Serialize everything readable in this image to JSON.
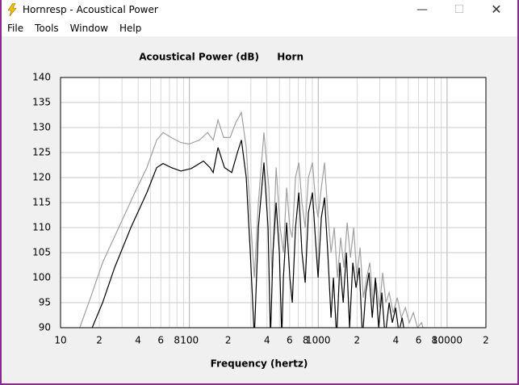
{
  "window": {
    "title": "Hornresp - Acoustical Power",
    "menu": [
      "File",
      "Tools",
      "Window",
      "Help"
    ]
  },
  "chart_data": {
    "type": "line",
    "title": "Acoustical Power (dB)",
    "label": "Horn",
    "x_label": "Frequency (hertz)",
    "xscale": "log",
    "grid": true,
    "xlim": [
      10,
      20000
    ],
    "xticks": [
      10,
      {
        "value": 20,
        "label": "2"
      },
      {
        "value": 40,
        "label": "4"
      },
      {
        "value": 60,
        "label": "6"
      },
      {
        "value": 80,
        "label": "8"
      },
      100,
      {
        "value": 200,
        "label": "2"
      },
      {
        "value": 400,
        "label": "4"
      },
      {
        "value": 600,
        "label": "6"
      },
      {
        "value": 800,
        "label": "8"
      },
      1000,
      {
        "value": 2000,
        "label": "2"
      },
      {
        "value": 4000,
        "label": "4"
      },
      {
        "value": 6000,
        "label": "6"
      },
      {
        "value": 8000,
        "label": "8"
      },
      10000,
      {
        "value": 20000,
        "label": "2"
      }
    ],
    "xminor": [
      30,
      50,
      70,
      90,
      300,
      500,
      700,
      900,
      3000,
      5000,
      7000,
      9000
    ],
    "ylim": [
      90,
      140
    ],
    "yticks": [
      90,
      95,
      100,
      105,
      110,
      115,
      120,
      125,
      130,
      135,
      140
    ],
    "series": [
      {
        "color": "#a0a0a0",
        "x": [
          14.1,
          17.1,
          21.2,
          28.3,
          37.7,
          46.8,
          55.7,
          62.5,
          72.2,
          85.8,
          99.2,
          119.6,
          138.1,
          152.9,
          166.7,
          184.4,
          207,
          228.9,
          253.3,
          276.2,
          301.2,
          319,
          343,
          379,
          414,
          438,
          471,
          506,
          536,
          568,
          602,
          629,
          666,
          706,
          747,
          792,
          839,
          902,
          955,
          997,
          1057,
          1119,
          1186,
          1256,
          1331,
          1410,
          1494,
          1583,
          1677,
          1777,
          1883,
          1994,
          2112,
          2238,
          2371,
          2512,
          2660,
          2818,
          2986,
          3163,
          3351,
          3550,
          3815,
          4102,
          4410,
          4739,
          5092,
          5473,
          5885,
          6323,
          6699
        ],
        "values": [
          90,
          96,
          103,
          110,
          117,
          122,
          127.5,
          129,
          128,
          127,
          126.7,
          127.5,
          129,
          127.5,
          131.5,
          128,
          128,
          131,
          133,
          126,
          110,
          100,
          115,
          129,
          118,
          100,
          122,
          110,
          105,
          118,
          110,
          108,
          120,
          123,
          115,
          110,
          120,
          123,
          115,
          112,
          118,
          123,
          113,
          105,
          110,
          100,
          108,
          102,
          111,
          104,
          110,
          100,
          106,
          96,
          100,
          103,
          95,
          99,
          94,
          101,
          95,
          97,
          93,
          96,
          92,
          94,
          91,
          93,
          90,
          91,
          89
        ]
      },
      {
        "color": "#000000",
        "x": [
          17.6,
          21.2,
          26.3,
          35.1,
          46.8,
          55.7,
          62.5,
          72.2,
          85.8,
          103.5,
          128.6,
          144.3,
          152.9,
          166.7,
          187.1,
          213,
          235.6,
          253.3,
          276.2,
          296.9,
          319,
          343,
          379,
          408,
          426,
          445,
          471,
          499,
          521,
          536,
          568,
          602,
          629,
          666,
          706,
          747,
          792,
          839,
          902,
          955,
          997,
          1057,
          1119,
          1186,
          1256,
          1312,
          1390,
          1472,
          1561,
          1653,
          1751,
          1855,
          1965,
          2082,
          2206,
          2337,
          2476,
          2623,
          2778,
          2943,
          3118,
          3303,
          3550,
          3761,
          3985,
          4222,
          4474,
          4739
        ],
        "values": [
          90,
          95,
          102,
          110,
          117,
          122,
          122.8,
          122,
          121.3,
          121.8,
          123.3,
          122,
          121,
          126,
          122,
          121,
          125,
          127.5,
          120,
          105,
          88,
          110,
          123,
          110,
          88,
          105,
          115,
          105,
          88,
          100,
          111,
          100,
          95,
          110,
          117,
          105,
          99,
          113,
          117,
          107,
          100,
          112,
          116,
          105,
          92,
          100,
          88,
          103,
          95,
          105,
          90,
          103,
          98,
          102,
          88,
          97,
          101,
          92,
          100,
          90,
          97,
          88,
          95,
          91,
          94,
          89,
          92,
          88
        ]
      }
    ]
  }
}
